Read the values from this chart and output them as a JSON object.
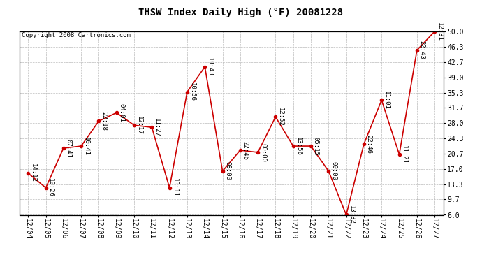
{
  "title": "THSW Index Daily High (°F) 20081228",
  "copyright": "Copyright 2008 Cartronics.com",
  "dates": [
    "12/04",
    "12/05",
    "12/06",
    "12/07",
    "12/08",
    "12/09",
    "12/10",
    "12/11",
    "12/12",
    "12/13",
    "12/14",
    "12/15",
    "12/16",
    "12/17",
    "12/18",
    "12/19",
    "12/20",
    "12/21",
    "12/22",
    "12/23",
    "12/24",
    "12/25",
    "12/26",
    "12/27"
  ],
  "values": [
    16.0,
    12.5,
    22.0,
    22.5,
    28.5,
    30.5,
    27.5,
    27.0,
    12.5,
    35.5,
    41.5,
    16.5,
    21.5,
    21.0,
    29.5,
    22.5,
    22.5,
    16.5,
    6.0,
    23.0,
    33.5,
    20.5,
    45.5,
    50.0
  ],
  "labels": [
    "14:12",
    "10:26",
    "07:41",
    "10:41",
    "22:18",
    "04:01",
    "12:17",
    "11:27",
    "13:11",
    "10:56",
    "18:43",
    "08:00",
    "22:46",
    "00:00",
    "12:52",
    "13:56",
    "05:15",
    "00:00",
    "13:32",
    "22:46",
    "11:01",
    "11:21",
    "22:43",
    "12:31"
  ],
  "ylim_min": 6.0,
  "ylim_max": 50.0,
  "yticks": [
    6.0,
    9.7,
    13.3,
    17.0,
    20.7,
    24.3,
    28.0,
    31.7,
    35.3,
    39.0,
    42.7,
    46.3,
    50.0
  ],
  "line_color": "#cc0000",
  "marker_color": "#cc0000",
  "bg_color": "#ffffff",
  "grid_color": "#bbbbbb",
  "title_fontsize": 10,
  "label_fontsize": 6.5,
  "tick_fontsize": 7,
  "copyright_fontsize": 6.5,
  "ytick_labels": [
    "6.0",
    "9.7",
    "13.3",
    "17.0",
    "20.7",
    "24.3",
    "28.0",
    "31.7",
    "35.3",
    "39.0",
    "42.7",
    "46.3",
    "50.0"
  ]
}
